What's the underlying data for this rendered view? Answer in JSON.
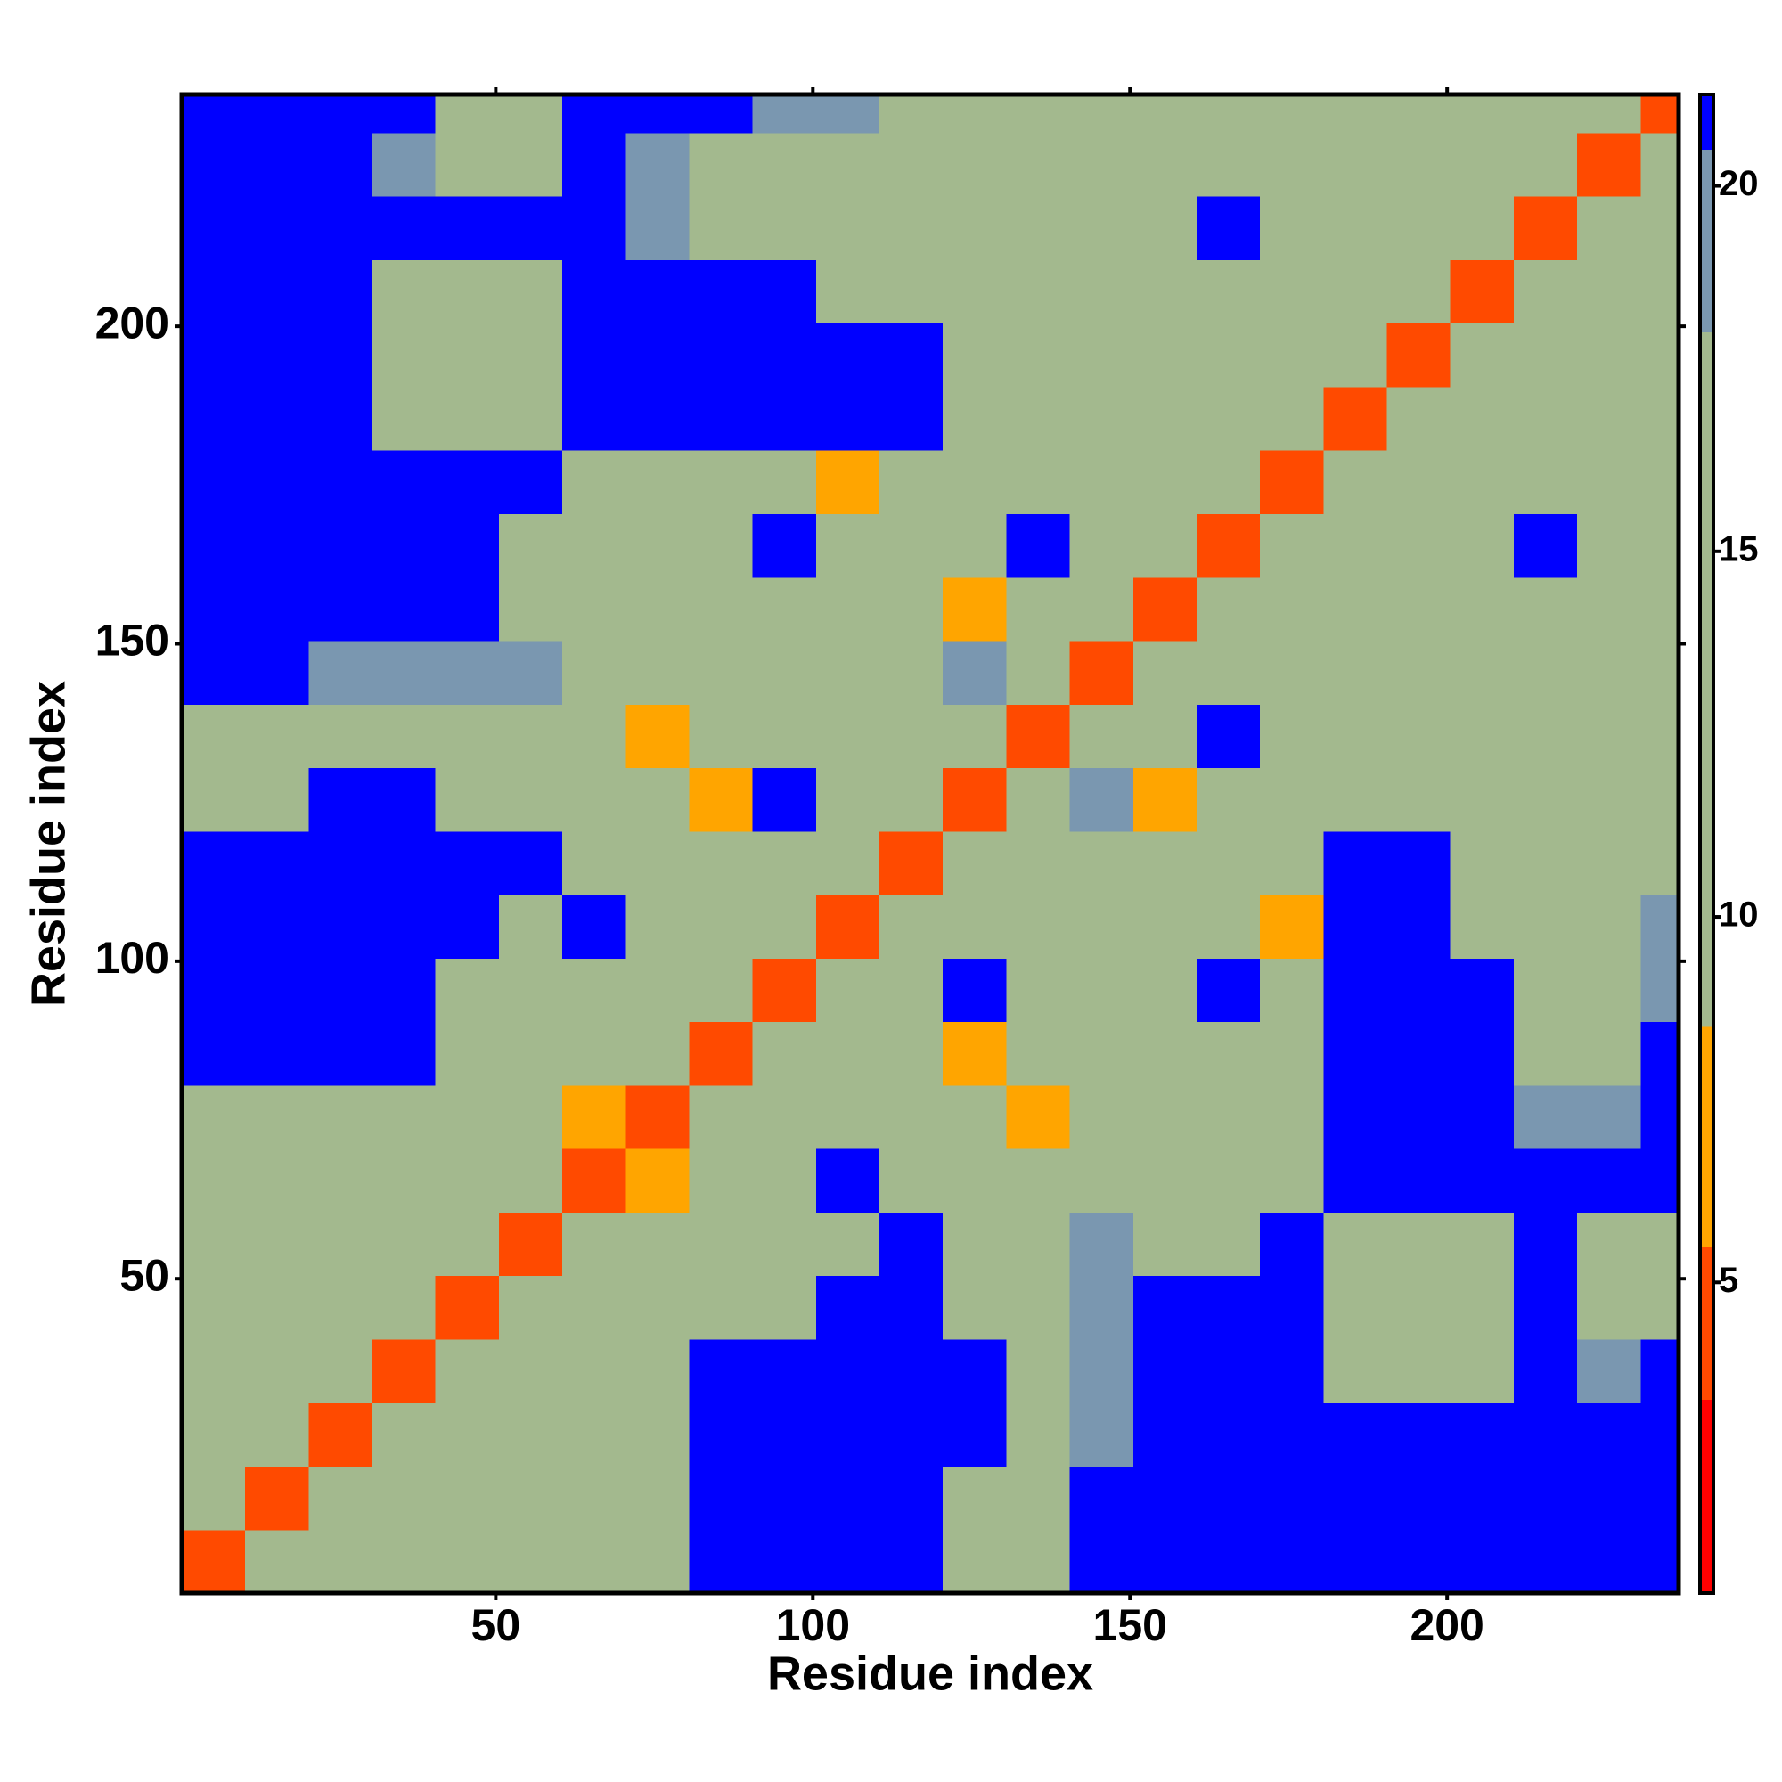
{
  "chart_data": {
    "type": "heatmap",
    "xlabel": "Residue index",
    "ylabel": "Residue index",
    "bins": [
      0.5,
      10.5,
      20.5,
      30.5,
      40.5,
      50.5,
      60.5,
      70.5,
      80.5,
      90.5,
      100.5,
      110.5,
      120.5,
      130.5,
      140.5,
      150.5,
      160.5,
      170.5,
      180.5,
      190.5,
      200.5,
      210.5,
      220.5,
      230.5,
      236.5
    ],
    "xlim": [
      0.5,
      236.5
    ],
    "ylim": [
      0.5,
      236.5
    ],
    "xticks": [
      50,
      100,
      150,
      200
    ],
    "yticks": [
      50,
      100,
      150,
      200
    ],
    "z": [
      [
        4,
        10,
        15,
        17,
        17,
        17,
        17,
        17,
        21,
        21,
        21,
        21,
        18,
        18,
        21,
        21,
        21,
        21,
        21,
        21,
        21,
        21,
        21,
        21
      ],
      [
        10,
        4,
        10,
        15,
        17,
        17,
        17,
        17,
        21,
        21,
        21,
        21,
        18,
        17,
        21,
        21,
        21,
        21,
        21,
        21,
        21,
        21,
        21,
        21
      ],
      [
        15,
        10,
        4,
        10,
        15,
        17,
        17,
        17,
        21,
        21,
        21,
        21,
        21,
        17,
        19,
        21,
        21,
        21,
        21,
        21,
        21,
        21,
        21,
        21
      ],
      [
        17,
        15,
        10,
        4,
        10,
        15,
        17,
        17,
        21,
        21,
        21,
        21,
        21,
        17,
        19,
        21,
        21,
        21,
        16,
        16,
        18,
        21,
        19,
        21
      ],
      [
        17,
        17,
        15,
        10,
        4,
        10,
        15,
        17,
        18,
        18,
        21,
        21,
        17,
        17,
        19,
        21,
        21,
        21,
        16,
        16,
        16,
        21,
        17,
        17
      ],
      [
        17,
        17,
        17,
        15,
        10,
        4,
        10,
        12,
        15,
        17,
        17,
        21,
        17,
        17,
        19,
        17,
        18,
        21,
        18,
        16,
        18,
        21,
        17,
        17
      ],
      [
        17,
        17,
        17,
        17,
        15,
        10,
        4,
        8,
        17,
        16,
        21,
        17,
        18,
        16,
        16,
        17,
        17,
        17,
        21,
        21,
        21,
        21,
        21,
        21
      ],
      [
        17,
        17,
        17,
        17,
        17,
        12,
        8,
        4,
        11,
        17,
        16,
        17,
        14,
        8,
        16,
        17,
        17,
        17,
        21,
        21,
        21,
        19,
        19,
        21
      ],
      [
        21,
        21,
        21,
        21,
        18,
        15,
        17,
        11,
        4,
        11,
        10,
        10,
        8,
        14,
        18,
        16,
        17,
        17,
        21,
        21,
        21,
        18,
        18,
        21
      ],
      [
        21,
        21,
        21,
        21,
        18,
        17,
        16,
        17,
        11,
        4,
        11,
        13,
        21,
        16,
        17,
        18,
        21,
        18,
        21,
        21,
        21,
        18,
        18,
        19
      ],
      [
        21,
        21,
        21,
        21,
        21,
        17,
        21,
        16,
        10,
        11,
        4,
        11,
        17,
        17,
        16,
        17,
        15,
        8,
        21,
        21,
        17,
        17,
        17,
        19
      ],
      [
        21,
        21,
        21,
        21,
        21,
        21,
        17,
        17,
        10,
        13,
        11,
        4,
        11,
        17,
        17,
        16,
        10,
        15,
        21,
        21,
        17,
        17,
        17,
        17
      ],
      [
        18,
        18,
        21,
        21,
        17,
        17,
        18,
        14,
        8,
        21,
        17,
        11,
        4,
        11,
        19,
        8,
        16,
        17,
        17,
        17,
        17,
        17,
        17,
        17
      ],
      [
        18,
        17,
        17,
        17,
        17,
        17,
        16,
        8,
        14,
        16,
        17,
        17,
        11,
        4,
        11,
        10,
        21,
        16,
        17,
        17,
        17,
        17,
        17,
        17
      ],
      [
        21,
        21,
        19,
        19,
        19,
        19,
        16,
        16,
        18,
        17,
        16,
        17,
        19,
        11,
        4,
        11,
        17,
        17,
        17,
        17,
        17,
        17,
        12,
        10
      ],
      [
        21,
        21,
        21,
        21,
        21,
        17,
        17,
        17,
        16,
        18,
        17,
        16,
        8,
        10,
        11,
        4,
        11,
        17,
        17,
        17,
        17,
        17,
        10,
        14
      ],
      [
        21,
        21,
        21,
        21,
        21,
        18,
        17,
        17,
        17,
        21,
        15,
        10,
        16,
        21,
        17,
        11,
        4,
        11,
        17,
        17,
        17,
        21,
        17,
        17
      ],
      [
        21,
        21,
        21,
        21,
        21,
        21,
        17,
        17,
        17,
        18,
        8,
        15,
        17,
        16,
        17,
        17,
        11,
        4,
        11,
        17,
        17,
        10,
        10,
        17
      ],
      [
        21,
        21,
        21,
        16,
        16,
        18,
        21,
        21,
        21,
        21,
        21,
        21,
        17,
        17,
        17,
        17,
        17,
        11,
        4,
        11,
        17,
        17,
        10,
        10
      ],
      [
        21,
        21,
        21,
        16,
        16,
        16,
        21,
        21,
        21,
        21,
        21,
        21,
        17,
        17,
        17,
        17,
        17,
        17,
        11,
        4,
        11,
        17,
        10,
        17
      ],
      [
        21,
        21,
        21,
        18,
        16,
        18,
        21,
        21,
        21,
        21,
        17,
        17,
        17,
        17,
        17,
        17,
        17,
        17,
        17,
        11,
        4,
        11,
        17,
        17
      ],
      [
        21,
        21,
        21,
        21,
        21,
        21,
        21,
        19,
        18,
        18,
        17,
        17,
        17,
        17,
        17,
        17,
        21,
        10,
        17,
        17,
        11,
        4,
        11,
        17
      ],
      [
        21,
        21,
        21,
        19,
        17,
        17,
        21,
        19,
        18,
        18,
        17,
        17,
        17,
        17,
        12,
        10,
        17,
        10,
        10,
        10,
        17,
        11,
        4,
        11
      ],
      [
        21,
        21,
        21,
        21,
        17,
        17,
        21,
        21,
        21,
        19,
        19,
        17,
        17,
        17,
        10,
        14,
        17,
        17,
        10,
        17,
        17,
        17,
        11,
        4
      ]
    ],
    "zlim": [
      0.75,
      21.25
    ],
    "zticks": [
      5,
      10,
      15,
      20
    ],
    "color_bands": [
      {
        "max": 3.4,
        "color": "#ff0000"
      },
      {
        "max": 5.5,
        "color": "#ff4a00"
      },
      {
        "max": 8.5,
        "color": "#ffa500"
      },
      {
        "max": 18,
        "color": "#a3b98e"
      },
      {
        "max": 20.5,
        "color": "#7a97b0"
      },
      {
        "max": 21.25,
        "color": "#0000ff"
      }
    ]
  }
}
